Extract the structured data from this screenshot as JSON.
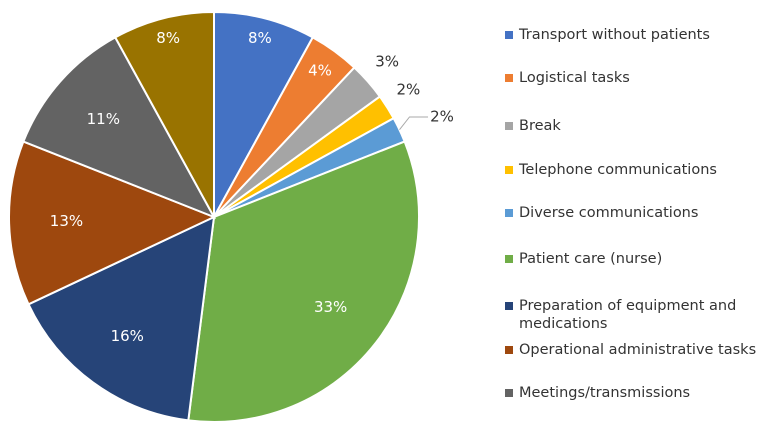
{
  "chart_data": {
    "type": "pie",
    "categories": [
      "Transport without patients",
      "Logistical tasks",
      "Break",
      "Telephone communications",
      "Diverse communications",
      "Patient care (nurse)",
      "Preparation of equipment and medications",
      "Operational administrative tasks",
      "Meetings/transmissions",
      null
    ],
    "values": [
      8,
      4,
      3,
      2,
      2,
      33,
      16,
      13,
      11,
      8
    ],
    "value_labels": [
      "8%",
      "4%",
      "3%",
      "2%",
      "2%",
      "33%",
      "16%",
      "13%",
      "11%",
      "8%"
    ],
    "colors": [
      "#4472c4",
      "#ed7d31",
      "#a5a5a5",
      "#ffc000",
      "#5b9bd5",
      "#70ad47",
      "#264478",
      "#9e480e",
      "#636363",
      "#997300"
    ],
    "legend": "right"
  }
}
